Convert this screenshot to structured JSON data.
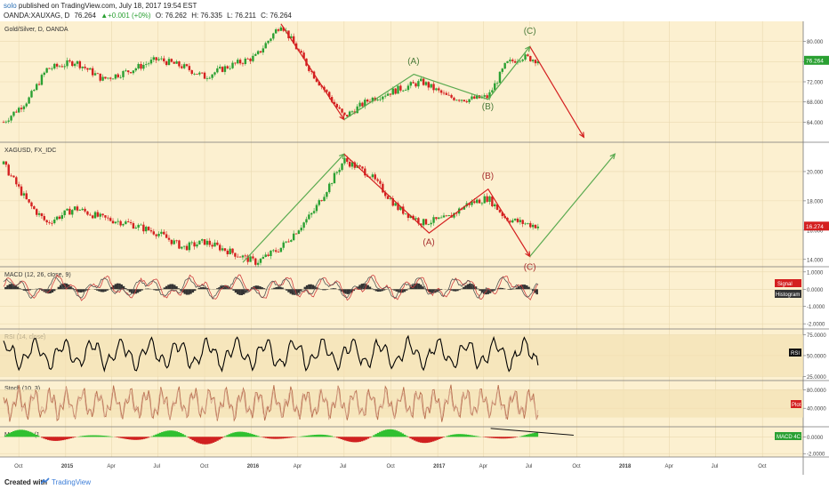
{
  "header": {
    "user": "solo",
    "published": "published on TradingView.com, July 18, 2017 19:54 EST",
    "symbol": "OANDA:XAUXAG, D",
    "last": "76.264",
    "change": "▲+0.001 (+0%)",
    "open": "O: 76.262",
    "high": "H: 76.335",
    "low": "L: 76.211",
    "close": "C: 76.264"
  },
  "footer": {
    "created_with": "Created with",
    "brand": "TradingView"
  },
  "colors": {
    "background": "#fcf0d0",
    "grid": "#ead9b0",
    "up": "#2aa032",
    "down": "#d42020",
    "wave_green": "#5aaa50",
    "wave_red": "#d42020",
    "rsi_line": "#000000",
    "stoch": "#b86e4e",
    "macd_line": "#d04040",
    "signal_line": "#555555"
  },
  "chart_data": [
    {
      "type": "candlestick",
      "title": "Gold/Silver, D, OANDA",
      "ylim": [
        60,
        84
      ],
      "yticks": [
        "84.000",
        "80.000",
        "76.000",
        "72.000",
        "68.000",
        "64.000"
      ],
      "last_label": "76.264",
      "series": [
        {
          "x": [
            "2014-09-01",
            "2014-10-20",
            "2014-11-25",
            "2015-01-20",
            "2015-03-15",
            "2015-05-01",
            "2015-07-01",
            "2015-08-20",
            "2015-10-01",
            "2015-11-15",
            "2016-01-10",
            "2016-02-28",
            "2016-05-01",
            "2016-07-01",
            "2016-08-20",
            "2016-10-15",
            "2016-12-01",
            "2017-01-20",
            "2017-03-01",
            "2017-04-10",
            "2017-05-15",
            "2017-06-15",
            "2017-07-18"
          ],
          "y": [
            64.0,
            68.5,
            74.5,
            76.0,
            72.5,
            74.0,
            76.5,
            75.0,
            73.0,
            75.0,
            77.0,
            83.5,
            73.5,
            65.0,
            68.5,
            70.5,
            72.0,
            69.0,
            68.5,
            69.0,
            75.5,
            77.0,
            76.264
          ]
        }
      ],
      "waves": [
        {
          "color": "down",
          "points": [
            [
              "2016-02-28",
              83.5
            ],
            [
              "2016-07-01",
              64.5
            ]
          ]
        },
        {
          "color": "green",
          "points": [
            [
              "2016-07-01",
              64.5
            ],
            [
              "2016-11-15",
              73.5
            ],
            [
              "2017-04-10",
              68.5
            ],
            [
              "2017-07-01",
              79.0
            ]
          ]
        },
        {
          "color": "down",
          "points": [
            [
              "2017-07-01",
              79.0
            ],
            [
              "2017-10-15",
              61.0
            ]
          ]
        }
      ],
      "labels": [
        {
          "text": "(A)",
          "x": "2016-11-15",
          "y": 75.5
        },
        {
          "text": "(B)",
          "x": "2017-04-10",
          "y": 66.5
        },
        {
          "text": "(C)",
          "x": "2017-07-01",
          "y": 81.5
        }
      ]
    },
    {
      "type": "candlestick",
      "title": "XAGUSD, FX_IDC",
      "ylim": [
        13.5,
        22
      ],
      "yticks": [
        "20.000",
        "18.000",
        "16.000",
        "14.000"
      ],
      "last_label": "16.274",
      "series": [
        {
          "x": [
            "2014-09-01",
            "2014-10-20",
            "2014-11-25",
            "2015-01-20",
            "2015-03-15",
            "2015-05-01",
            "2015-07-01",
            "2015-08-20",
            "2015-10-01",
            "2015-11-15",
            "2016-01-10",
            "2016-02-28",
            "2016-05-01",
            "2016-07-01",
            "2016-08-20",
            "2016-10-15",
            "2016-12-01",
            "2017-01-20",
            "2017-03-01",
            "2017-04-10",
            "2017-05-15",
            "2017-06-15",
            "2017-07-18"
          ],
          "y": [
            20.5,
            17.8,
            16.5,
            17.5,
            16.8,
            16.5,
            15.8,
            14.8,
            15.2,
            14.6,
            13.8,
            14.8,
            17.2,
            20.8,
            19.8,
            17.5,
            16.5,
            16.8,
            17.8,
            18.2,
            16.8,
            16.5,
            16.274
          ]
        }
      ],
      "waves": [
        {
          "color": "green",
          "points": [
            [
              "2015-12-15",
              13.8
            ],
            [
              "2016-07-01",
              21.2
            ]
          ]
        },
        {
          "color": "down",
          "points": [
            [
              "2016-07-01",
              21.2
            ],
            [
              "2016-12-15",
              15.8
            ],
            [
              "2017-04-10",
              18.8
            ],
            [
              "2017-07-01",
              14.2
            ]
          ]
        },
        {
          "color": "green",
          "points": [
            [
              "2017-07-01",
              14.2
            ],
            [
              "2017-12-15",
              21.2
            ]
          ]
        }
      ],
      "labels": [
        {
          "text": "(A)",
          "x": "2016-12-15",
          "y": 15.0
        },
        {
          "text": "(B)",
          "x": "2017-04-10",
          "y": 19.5
        },
        {
          "text": "(C)",
          "x": "2017-07-01",
          "y": 13.3
        }
      ]
    },
    {
      "type": "line",
      "title": "MACD (12, 26, close, 9)",
      "ylim": [
        -2.3,
        1.3
      ],
      "yticks": [
        "1.0000",
        "0.0000",
        "-1.0000",
        "-2.0000"
      ],
      "badges": [
        "Signal",
        "Histogram"
      ]
    },
    {
      "type": "line",
      "title": "RSI (14, close)",
      "ylim": [
        20,
        82
      ],
      "yticks": [
        "75.0000",
        "50.0000",
        "25.0000"
      ],
      "badges": [
        "RSI"
      ]
    },
    {
      "type": "line",
      "title": "Stoch (10, 3)",
      "ylim": [
        0,
        100
      ],
      "yticks": [
        "80.0000",
        "40.0000",
        "0.0000"
      ],
      "badges": [
        "Plot"
      ]
    },
    {
      "type": "bar",
      "title": "MACD 4C (1",
      "ylim": [
        -2.4,
        1.2
      ],
      "yticks": [
        "0.0000",
        "-2.0000"
      ],
      "badges": [
        "MACD 4C"
      ]
    }
  ],
  "x_axis": {
    "ticks": [
      {
        "label": "Oct",
        "date": "2014-10-01"
      },
      {
        "label": "2015",
        "date": "2015-01-01"
      },
      {
        "label": "Apr",
        "date": "2015-04-01"
      },
      {
        "label": "Jul",
        "date": "2015-07-01"
      },
      {
        "label": "Oct",
        "date": "2015-10-01"
      },
      {
        "label": "2016",
        "date": "2016-01-01"
      },
      {
        "label": "Apr",
        "date": "2016-04-01"
      },
      {
        "label": "Jul",
        "date": "2016-07-01"
      },
      {
        "label": "Oct",
        "date": "2016-10-01"
      },
      {
        "label": "2017",
        "date": "2017-01-01"
      },
      {
        "label": "Apr",
        "date": "2017-04-01"
      },
      {
        "label": "Jul",
        "date": "2017-07-01"
      },
      {
        "label": "Oct",
        "date": "2017-10-01"
      },
      {
        "label": "2018",
        "date": "2018-01-01"
      },
      {
        "label": "Apr",
        "date": "2018-04-01"
      },
      {
        "label": "Jul",
        "date": "2018-07-01"
      },
      {
        "label": "Oct",
        "date": "2018-10-01"
      }
    ]
  }
}
